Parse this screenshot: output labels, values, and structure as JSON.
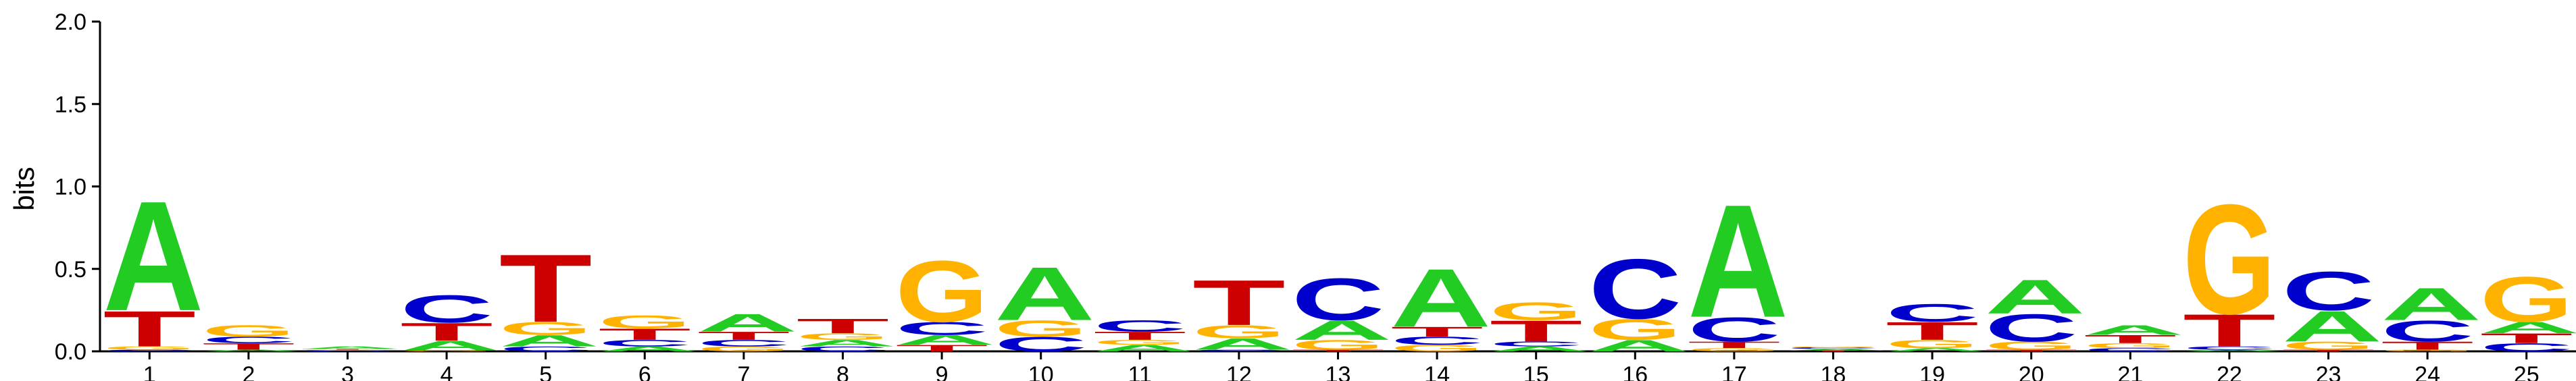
{
  "chart_data": {
    "type": "sequence-logo",
    "ylabel": "bits",
    "ylim": [
      0,
      2
    ],
    "yticks": [
      "0.0",
      "0.5",
      "1.0",
      "1.5",
      "2.0"
    ],
    "ytick_values": [
      0,
      0.5,
      1,
      1.5,
      2
    ],
    "colors": {
      "A": "#22cc22",
      "C": "#0000cc",
      "G": "#ffb300",
      "T": "#cc0000"
    },
    "positions": [
      {
        "label": "1",
        "letters": [
          {
            "base": "C",
            "bits": 0.01
          },
          {
            "base": "G",
            "bits": 0.02
          },
          {
            "base": "T",
            "bits": 0.22
          },
          {
            "base": "A",
            "bits": 0.68
          }
        ]
      },
      {
        "label": "2",
        "letters": [
          {
            "base": "A",
            "bits": 0.01
          },
          {
            "base": "T",
            "bits": 0.04
          },
          {
            "base": "C",
            "bits": 0.04
          },
          {
            "base": "G",
            "bits": 0.07
          }
        ]
      },
      {
        "label": "3",
        "letters": [
          {
            "base": "C",
            "bits": 0.005
          },
          {
            "base": "G",
            "bits": 0.005
          },
          {
            "base": "T",
            "bits": 0.005
          },
          {
            "base": "A",
            "bits": 0.015
          }
        ]
      },
      {
        "label": "4",
        "letters": [
          {
            "base": "G",
            "bits": 0.005
          },
          {
            "base": "A",
            "bits": 0.06
          },
          {
            "base": "T",
            "bits": 0.11
          },
          {
            "base": "C",
            "bits": 0.17
          }
        ]
      },
      {
        "label": "5",
        "letters": [
          {
            "base": "C",
            "bits": 0.03
          },
          {
            "base": "A",
            "bits": 0.07
          },
          {
            "base": "G",
            "bits": 0.08
          },
          {
            "base": "T",
            "bits": 0.42
          }
        ]
      },
      {
        "label": "6",
        "letters": [
          {
            "base": "A",
            "bits": 0.03
          },
          {
            "base": "C",
            "bits": 0.04
          },
          {
            "base": "T",
            "bits": 0.07
          },
          {
            "base": "G",
            "bits": 0.08
          }
        ]
      },
      {
        "label": "7",
        "letters": [
          {
            "base": "G",
            "bits": 0.03
          },
          {
            "base": "C",
            "bits": 0.04
          },
          {
            "base": "T",
            "bits": 0.05
          },
          {
            "base": "A",
            "bits": 0.11
          }
        ]
      },
      {
        "label": "8",
        "letters": [
          {
            "base": "C",
            "bits": 0.03
          },
          {
            "base": "A",
            "bits": 0.04
          },
          {
            "base": "G",
            "bits": 0.04
          },
          {
            "base": "T",
            "bits": 0.09
          }
        ]
      },
      {
        "label": "9",
        "letters": [
          {
            "base": "T",
            "bits": 0.04
          },
          {
            "base": "A",
            "bits": 0.06
          },
          {
            "base": "C",
            "bits": 0.08
          },
          {
            "base": "G",
            "bits": 0.38
          }
        ]
      },
      {
        "label": "10",
        "letters": [
          {
            "base": "C",
            "bits": 0.09
          },
          {
            "base": "G",
            "bits": 0.1
          },
          {
            "base": "A",
            "bits": 0.33
          }
        ]
      },
      {
        "label": "11",
        "letters": [
          {
            "base": "A",
            "bits": 0.04
          },
          {
            "base": "G",
            "bits": 0.03
          },
          {
            "base": "T",
            "bits": 0.05
          },
          {
            "base": "C",
            "bits": 0.07
          }
        ]
      },
      {
        "label": "12",
        "letters": [
          {
            "base": "C",
            "bits": 0.01
          },
          {
            "base": "A",
            "bits": 0.07
          },
          {
            "base": "G",
            "bits": 0.08
          },
          {
            "base": "T",
            "bits": 0.28
          }
        ]
      },
      {
        "label": "13",
        "letters": [
          {
            "base": "T",
            "bits": 0.01
          },
          {
            "base": "G",
            "bits": 0.06
          },
          {
            "base": "A",
            "bits": 0.12
          },
          {
            "base": "C",
            "bits": 0.26
          }
        ]
      },
      {
        "label": "14",
        "letters": [
          {
            "base": "G",
            "bits": 0.04
          },
          {
            "base": "C",
            "bits": 0.05
          },
          {
            "base": "T",
            "bits": 0.06
          },
          {
            "base": "A",
            "bits": 0.36
          }
        ]
      },
      {
        "label": "15",
        "letters": [
          {
            "base": "A",
            "bits": 0.03
          },
          {
            "base": "C",
            "bits": 0.03
          },
          {
            "base": "T",
            "bits": 0.13
          },
          {
            "base": "G",
            "bits": 0.11
          }
        ]
      },
      {
        "label": "16",
        "letters": [
          {
            "base": "A",
            "bits": 0.07
          },
          {
            "base": "G",
            "bits": 0.13
          },
          {
            "base": "C",
            "bits": 0.37
          }
        ]
      },
      {
        "label": "17",
        "letters": [
          {
            "base": "G",
            "bits": 0.02
          },
          {
            "base": "T",
            "bits": 0.04
          },
          {
            "base": "C",
            "bits": 0.15
          },
          {
            "base": "A",
            "bits": 0.7
          }
        ]
      },
      {
        "label": "18",
        "letters": [
          {
            "base": "T",
            "bits": 0.005
          },
          {
            "base": "A",
            "bits": 0.01
          },
          {
            "base": "C",
            "bits": 0.01
          },
          {
            "base": "G",
            "bits": 0.005
          }
        ]
      },
      {
        "label": "19",
        "letters": [
          {
            "base": "A",
            "bits": 0.02
          },
          {
            "base": "G",
            "bits": 0.05
          },
          {
            "base": "T",
            "bits": 0.11
          },
          {
            "base": "C",
            "bits": 0.11
          }
        ]
      },
      {
        "label": "20",
        "letters": [
          {
            "base": "T",
            "bits": 0.01
          },
          {
            "base": "G",
            "bits": 0.05
          },
          {
            "base": "C",
            "bits": 0.17
          },
          {
            "base": "A",
            "bits": 0.21
          }
        ]
      },
      {
        "label": "21",
        "letters": [
          {
            "base": "C",
            "bits": 0.02
          },
          {
            "base": "G",
            "bits": 0.03
          },
          {
            "base": "T",
            "bits": 0.05
          },
          {
            "base": "A",
            "bits": 0.06
          }
        ]
      },
      {
        "label": "22",
        "letters": [
          {
            "base": "A",
            "bits": 0.01
          },
          {
            "base": "C",
            "bits": 0.02
          },
          {
            "base": "T",
            "bits": 0.2
          },
          {
            "base": "G",
            "bits": 0.68
          }
        ]
      },
      {
        "label": "23",
        "letters": [
          {
            "base": "T",
            "bits": 0.01
          },
          {
            "base": "G",
            "bits": 0.05
          },
          {
            "base": "A",
            "bits": 0.19
          },
          {
            "base": "C",
            "bits": 0.24
          }
        ]
      },
      {
        "label": "24",
        "letters": [
          {
            "base": "G",
            "bits": 0.01
          },
          {
            "base": "T",
            "bits": 0.05
          },
          {
            "base": "C",
            "bits": 0.13
          },
          {
            "base": "A",
            "bits": 0.2
          }
        ]
      },
      {
        "label": "25",
        "letters": [
          {
            "base": "C",
            "bits": 0.05
          },
          {
            "base": "T",
            "bits": 0.06
          },
          {
            "base": "A",
            "bits": 0.07
          },
          {
            "base": "G",
            "bits": 0.28
          }
        ]
      }
    ]
  }
}
